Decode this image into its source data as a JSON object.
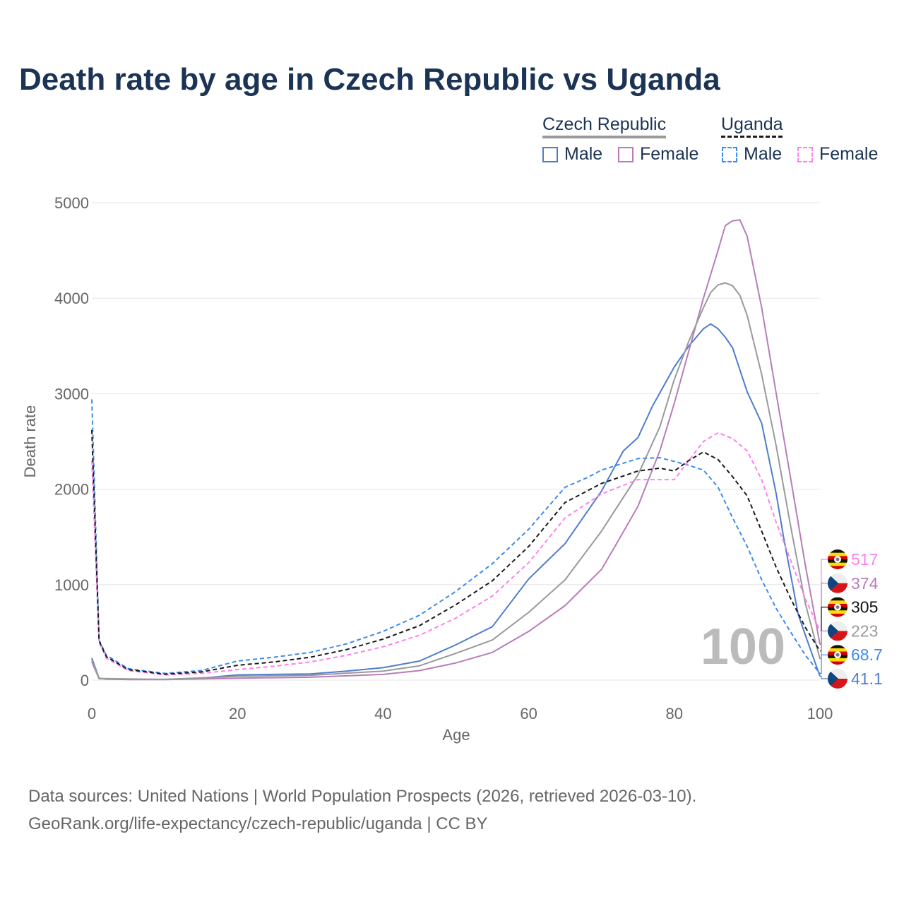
{
  "chart_data": {
    "type": "line",
    "title": "Death rate by age in Czech Republic vs Uganda",
    "xlabel": "Age",
    "ylabel": "Death rate",
    "xlim": [
      0,
      100
    ],
    "ylim": [
      0,
      5000
    ],
    "xticks": [
      "0",
      "20",
      "40",
      "60",
      "80",
      "100"
    ],
    "yticks": [
      "0",
      "1000",
      "2000",
      "3000",
      "4000",
      "5000"
    ],
    "grid": true,
    "age_marker": "100",
    "legend": {
      "groups": [
        {
          "name": "Czech Republic",
          "items": [
            "Male",
            "Female"
          ]
        },
        {
          "name": "Uganda",
          "items": [
            "Male",
            "Female"
          ]
        }
      ],
      "placement": "top-right"
    },
    "series": [
      {
        "name": "Czech Republic Male",
        "country": "cz",
        "color": "#4f7dcc",
        "dash": false,
        "end_label": "41.1",
        "points": [
          [
            0,
            230
          ],
          [
            1,
            20
          ],
          [
            2,
            10
          ],
          [
            5,
            8
          ],
          [
            10,
            8
          ],
          [
            15,
            20
          ],
          [
            20,
            55
          ],
          [
            25,
            60
          ],
          [
            30,
            65
          ],
          [
            35,
            95
          ],
          [
            40,
            130
          ],
          [
            45,
            200
          ],
          [
            50,
            370
          ],
          [
            55,
            560
          ],
          [
            60,
            1060
          ],
          [
            65,
            1430
          ],
          [
            70,
            1980
          ],
          [
            73,
            2400
          ],
          [
            75,
            2540
          ],
          [
            77,
            2870
          ],
          [
            80,
            3280
          ],
          [
            82,
            3500
          ],
          [
            84,
            3680
          ],
          [
            85,
            3730
          ],
          [
            86,
            3680
          ],
          [
            87,
            3590
          ],
          [
            88,
            3480
          ],
          [
            90,
            3020
          ],
          [
            92,
            2690
          ],
          [
            94,
            1950
          ],
          [
            95,
            1500
          ],
          [
            97,
            690
          ],
          [
            98,
            470
          ],
          [
            100,
            41.1
          ]
        ]
      },
      {
        "name": "Czech Republic Female",
        "country": "cz",
        "color": "#b87db9",
        "dash": false,
        "end_label": "374",
        "points": [
          [
            0,
            190
          ],
          [
            1,
            15
          ],
          [
            5,
            5
          ],
          [
            10,
            5
          ],
          [
            20,
            20
          ],
          [
            30,
            30
          ],
          [
            40,
            60
          ],
          [
            45,
            100
          ],
          [
            50,
            180
          ],
          [
            55,
            290
          ],
          [
            60,
            510
          ],
          [
            65,
            780
          ],
          [
            70,
            1160
          ],
          [
            72,
            1420
          ],
          [
            75,
            1820
          ],
          [
            78,
            2400
          ],
          [
            80,
            2900
          ],
          [
            82,
            3450
          ],
          [
            84,
            4000
          ],
          [
            86,
            4500
          ],
          [
            87,
            4760
          ],
          [
            88,
            4810
          ],
          [
            89,
            4820
          ],
          [
            90,
            4650
          ],
          [
            92,
            3900
          ],
          [
            94,
            3000
          ],
          [
            96,
            2100
          ],
          [
            98,
            1200
          ],
          [
            100,
            374
          ]
        ]
      },
      {
        "name": "Czech Republic",
        "country": "cz",
        "color": "#9a9a9a",
        "dash": false,
        "end_label": "223",
        "points": [
          [
            0,
            210
          ],
          [
            1,
            18
          ],
          [
            10,
            7
          ],
          [
            20,
            40
          ],
          [
            30,
            50
          ],
          [
            40,
            95
          ],
          [
            45,
            150
          ],
          [
            50,
            280
          ],
          [
            55,
            420
          ],
          [
            60,
            710
          ],
          [
            65,
            1050
          ],
          [
            70,
            1560
          ],
          [
            75,
            2150
          ],
          [
            78,
            2650
          ],
          [
            80,
            3150
          ],
          [
            82,
            3550
          ],
          [
            84,
            3900
          ],
          [
            85,
            4060
          ],
          [
            86,
            4140
          ],
          [
            87,
            4160
          ],
          [
            88,
            4130
          ],
          [
            89,
            4030
          ],
          [
            90,
            3820
          ],
          [
            92,
            3200
          ],
          [
            94,
            2450
          ],
          [
            96,
            1600
          ],
          [
            98,
            800
          ],
          [
            100,
            223
          ]
        ]
      },
      {
        "name": "Uganda Male",
        "country": "ug",
        "color": "#3d8af0",
        "dash": true,
        "end_label": "68.7",
        "points": [
          [
            0,
            2940
          ],
          [
            1,
            420
          ],
          [
            2,
            260
          ],
          [
            5,
            120
          ],
          [
            10,
            70
          ],
          [
            15,
            100
          ],
          [
            20,
            200
          ],
          [
            25,
            240
          ],
          [
            30,
            290
          ],
          [
            35,
            380
          ],
          [
            40,
            510
          ],
          [
            45,
            680
          ],
          [
            50,
            930
          ],
          [
            55,
            1220
          ],
          [
            60,
            1580
          ],
          [
            65,
            2020
          ],
          [
            68,
            2120
          ],
          [
            70,
            2200
          ],
          [
            75,
            2320
          ],
          [
            78,
            2330
          ],
          [
            80,
            2290
          ],
          [
            82,
            2250
          ],
          [
            84,
            2200
          ],
          [
            86,
            2020
          ],
          [
            88,
            1700
          ],
          [
            90,
            1400
          ],
          [
            92,
            1050
          ],
          [
            94,
            750
          ],
          [
            96,
            500
          ],
          [
            98,
            260
          ],
          [
            100,
            68.7
          ]
        ]
      },
      {
        "name": "Uganda Female",
        "country": "ug",
        "color": "#ff80ee",
        "dash": true,
        "end_label": "517",
        "points": [
          [
            0,
            2300
          ],
          [
            1,
            400
          ],
          [
            2,
            230
          ],
          [
            5,
            100
          ],
          [
            10,
            55
          ],
          [
            15,
            70
          ],
          [
            20,
            110
          ],
          [
            25,
            145
          ],
          [
            30,
            190
          ],
          [
            35,
            260
          ],
          [
            40,
            350
          ],
          [
            45,
            470
          ],
          [
            50,
            650
          ],
          [
            55,
            880
          ],
          [
            60,
            1230
          ],
          [
            65,
            1700
          ],
          [
            70,
            1950
          ],
          [
            75,
            2100
          ],
          [
            80,
            2100
          ],
          [
            82,
            2300
          ],
          [
            84,
            2500
          ],
          [
            86,
            2590
          ],
          [
            88,
            2530
          ],
          [
            90,
            2400
          ],
          [
            92,
            2100
          ],
          [
            94,
            1650
          ],
          [
            96,
            1250
          ],
          [
            98,
            850
          ],
          [
            100,
            517
          ]
        ]
      },
      {
        "name": "Uganda",
        "country": "ug",
        "color": "#1a1a1a",
        "dash": true,
        "end_label": "305",
        "points": [
          [
            0,
            2620
          ],
          [
            1,
            410
          ],
          [
            2,
            245
          ],
          [
            5,
            110
          ],
          [
            10,
            62
          ],
          [
            15,
            85
          ],
          [
            20,
            155
          ],
          [
            25,
            190
          ],
          [
            30,
            240
          ],
          [
            35,
            320
          ],
          [
            40,
            430
          ],
          [
            45,
            570
          ],
          [
            50,
            790
          ],
          [
            55,
            1040
          ],
          [
            60,
            1400
          ],
          [
            65,
            1860
          ],
          [
            70,
            2060
          ],
          [
            75,
            2190
          ],
          [
            78,
            2220
          ],
          [
            80,
            2190
          ],
          [
            82,
            2300
          ],
          [
            84,
            2390
          ],
          [
            86,
            2310
          ],
          [
            88,
            2130
          ],
          [
            90,
            1930
          ],
          [
            92,
            1560
          ],
          [
            94,
            1180
          ],
          [
            96,
            850
          ],
          [
            98,
            550
          ],
          [
            100,
            305
          ]
        ]
      }
    ]
  },
  "footer": {
    "line1": "Data sources: United Nations | World Population Prospects (2026, retrieved 2026-03-10).",
    "line2": "GeoRank.org/life-expectancy/czech-republic/uganda | CC BY"
  }
}
